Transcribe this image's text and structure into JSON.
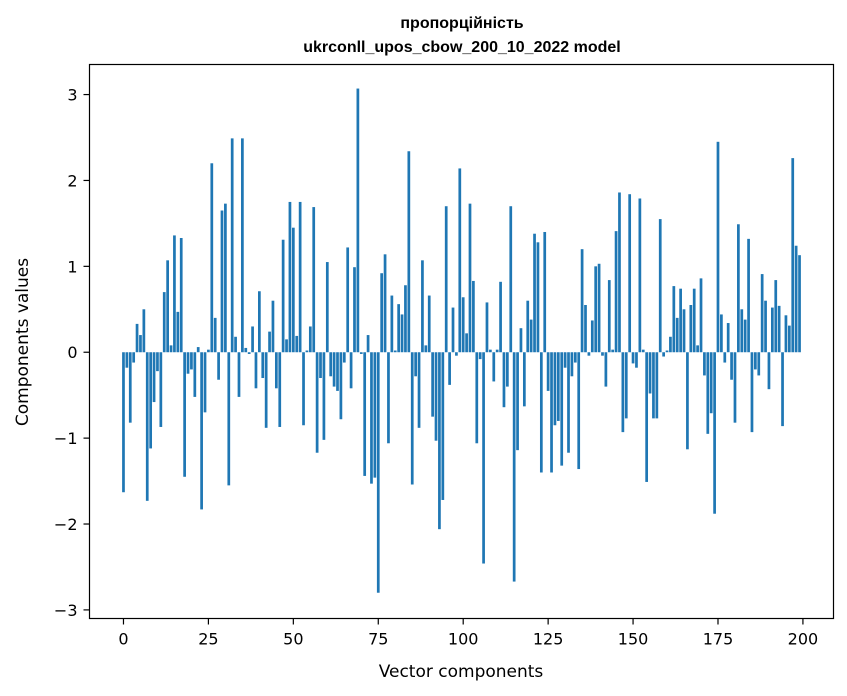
{
  "chart_data": {
    "type": "bar",
    "title_line1": "пропорційність",
    "title_line2": "ukrconll_upos_cbow_200_10_2022 model",
    "xlabel": "Vector components",
    "ylabel": "Components values",
    "xlim": [
      -10,
      209
    ],
    "ylim": [
      -3.1,
      3.35
    ],
    "xticks": [
      0,
      25,
      50,
      75,
      100,
      125,
      150,
      175,
      200
    ],
    "yticks": [
      -3,
      -2,
      -1,
      0,
      1,
      2,
      3
    ],
    "ytick_labels": [
      "−3",
      "−2",
      "−1",
      "0",
      "1",
      "2",
      "3"
    ],
    "grid": false,
    "bar_color": "#1f77b4",
    "x": [
      0,
      1,
      2,
      3,
      4,
      5,
      6,
      7,
      8,
      9,
      10,
      11,
      12,
      13,
      14,
      15,
      16,
      17,
      18,
      19,
      20,
      21,
      22,
      23,
      24,
      25,
      26,
      27,
      28,
      29,
      30,
      31,
      32,
      33,
      34,
      35,
      36,
      37,
      38,
      39,
      40,
      41,
      42,
      43,
      44,
      45,
      46,
      47,
      48,
      49,
      50,
      51,
      52,
      53,
      54,
      55,
      56,
      57,
      58,
      59,
      60,
      61,
      62,
      63,
      64,
      65,
      66,
      67,
      68,
      69,
      70,
      71,
      72,
      73,
      74,
      75,
      76,
      77,
      78,
      79,
      80,
      81,
      82,
      83,
      84,
      85,
      86,
      87,
      88,
      89,
      90,
      91,
      92,
      93,
      94,
      95,
      96,
      97,
      98,
      99,
      100,
      101,
      102,
      103,
      104,
      105,
      106,
      107,
      108,
      109,
      110,
      111,
      112,
      113,
      114,
      115,
      116,
      117,
      118,
      119,
      120,
      121,
      122,
      123,
      124,
      125,
      126,
      127,
      128,
      129,
      130,
      131,
      132,
      133,
      134,
      135,
      136,
      137,
      138,
      139,
      140,
      141,
      142,
      143,
      144,
      145,
      146,
      147,
      148,
      149,
      150,
      151,
      152,
      153,
      154,
      155,
      156,
      157,
      158,
      159,
      160,
      161,
      162,
      163,
      164,
      165,
      166,
      167,
      168,
      169,
      170,
      171,
      172,
      173,
      174,
      175,
      176,
      177,
      178,
      179,
      180,
      181,
      182,
      183,
      184,
      185,
      186,
      187,
      188,
      189,
      190,
      191,
      192,
      193,
      194,
      195,
      196,
      197,
      198,
      199
    ],
    "values": [
      -1.63,
      -0.18,
      -0.82,
      -0.12,
      0.33,
      0.2,
      0.5,
      -1.73,
      -1.12,
      -0.58,
      -0.22,
      -0.87,
      0.7,
      1.07,
      0.08,
      1.36,
      0.47,
      1.33,
      -1.45,
      -0.25,
      -0.2,
      -0.52,
      0.06,
      -1.83,
      -0.7,
      0.03,
      2.2,
      0.4,
      -0.32,
      1.65,
      1.73,
      -1.55,
      2.49,
      0.18,
      -0.52,
      2.49,
      0.05,
      -0.02,
      0.3,
      -0.42,
      0.71,
      -0.3,
      -0.88,
      0.24,
      0.6,
      -0.42,
      -0.87,
      1.31,
      0.15,
      1.75,
      1.45,
      0.19,
      1.75,
      -0.85,
      0.02,
      0.3,
      1.69,
      -1.17,
      -0.3,
      -1.02,
      1.05,
      -0.28,
      -0.4,
      -0.45,
      -0.78,
      -0.12,
      1.22,
      -0.42,
      0.99,
      3.07,
      -0.02,
      -1.44,
      0.2,
      -1.53,
      -1.46,
      -2.8,
      0.92,
      1.14,
      -1.06,
      0.66,
      0.02,
      0.56,
      0.44,
      0.78,
      2.34,
      -1.54,
      -0.28,
      -0.88,
      1.07,
      0.08,
      0.66,
      -0.75,
      -1.03,
      -2.06,
      -1.72,
      1.7,
      -0.38,
      0.52,
      -0.04,
      2.14,
      0.64,
      0.22,
      1.73,
      0.83,
      -1.06,
      -0.08,
      -2.46,
      0.58,
      0.03,
      -0.34,
      0.03,
      0.82,
      -0.64,
      -0.4,
      1.7,
      -2.67,
      -1.14,
      0.28,
      -0.63,
      0.6,
      0.38,
      1.38,
      1.28,
      -1.4,
      1.4,
      -0.45,
      -1.4,
      -0.85,
      -0.8,
      -1.32,
      -0.18,
      -1.17,
      -0.28,
      -0.12,
      -1.36,
      1.2,
      0.55,
      -0.04,
      0.37,
      1.0,
      1.03,
      -0.04,
      -0.4,
      0.84,
      0.03,
      1.41,
      1.86,
      -0.93,
      -0.77,
      1.84,
      -0.13,
      -0.18,
      1.79,
      0.03,
      -1.51,
      -0.48,
      -0.77,
      -0.77,
      1.55,
      -0.05,
      0.02,
      0.18,
      0.77,
      0.4,
      0.74,
      0.5,
      -1.13,
      0.55,
      0.74,
      0.08,
      0.86,
      -0.27,
      -0.95,
      -0.71,
      -1.88,
      2.45,
      0.44,
      -0.12,
      0.34,
      -0.32,
      -0.82,
      1.49,
      0.5,
      0.38,
      1.32,
      -0.93,
      -0.2,
      -0.27,
      0.91,
      0.6,
      -0.43,
      0.52,
      0.84,
      0.54,
      -0.86,
      0.43,
      0.31,
      2.26,
      1.24,
      1.13
    ]
  }
}
